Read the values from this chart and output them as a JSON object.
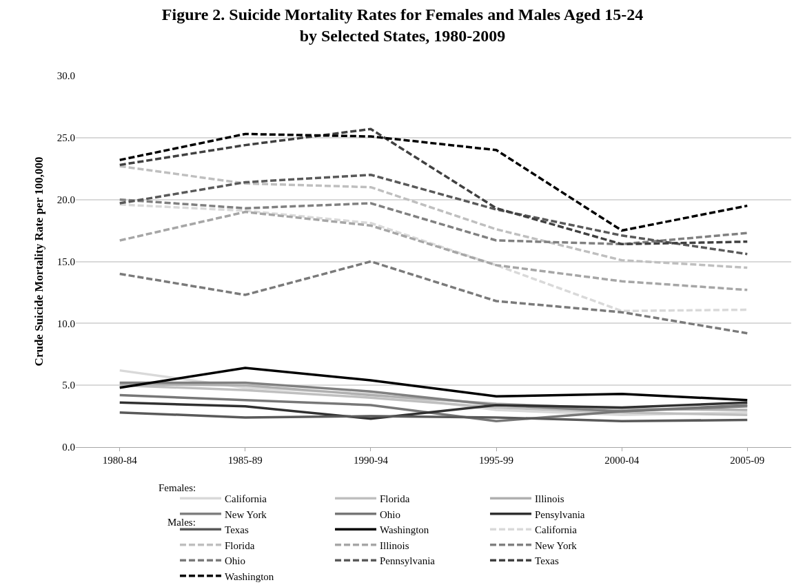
{
  "chart_data": {
    "type": "line",
    "title": "Figure 2. Suicide Mortality Rates for Females and Males Aged 15-24\nby Selected States, 1980-2009",
    "ylabel": "Crude Suicide Mortality Rate per 100,000",
    "categories": [
      "1980-84",
      "1985-89",
      "1990-94",
      "1995-99",
      "2000-04",
      "2005-09"
    ],
    "ylim": [
      0,
      30
    ],
    "yticks": [
      {
        "value": 0,
        "label": "0.0"
      },
      {
        "value": 5,
        "label": "5.0"
      },
      {
        "value": 10,
        "label": "10.0"
      },
      {
        "value": 15,
        "label": "15.0"
      },
      {
        "value": 20,
        "label": "20.0"
      },
      {
        "value": 25,
        "label": "25.0"
      },
      {
        "value": 30,
        "label": "30.0"
      }
    ],
    "grid": "y",
    "legend": "bottom",
    "marker": "none",
    "annotations": [
      "Females:",
      "Males:"
    ],
    "series": [
      {
        "name": "California",
        "color": "#d9d9d9",
        "line_style": "solid",
        "values": [
          6.2,
          4.8,
          4.3,
          3.0,
          2.6,
          2.8
        ]
      },
      {
        "name": "Florida",
        "color": "#bfbfbf",
        "line_style": "solid",
        "values": [
          5.0,
          4.6,
          4.0,
          3.2,
          2.8,
          2.6
        ]
      },
      {
        "name": "Illinois",
        "color": "#b0b0b0",
        "line_style": "solid",
        "values": [
          5.1,
          5.0,
          4.2,
          3.5,
          3.1,
          3.0
        ]
      },
      {
        "name": "New York",
        "color": "#808080",
        "line_style": "solid",
        "values": [
          5.2,
          5.2,
          4.5,
          3.4,
          2.9,
          3.3
        ]
      },
      {
        "name": "Ohio",
        "color": "#777777",
        "line_style": "solid",
        "values": [
          4.2,
          3.8,
          3.4,
          2.1,
          2.9,
          3.4
        ]
      },
      {
        "name": "Pensylvania",
        "color": "#303030",
        "line_style": "solid",
        "values": [
          3.6,
          3.3,
          2.3,
          3.4,
          3.2,
          3.6
        ]
      },
      {
        "name": "Texas",
        "color": "#595959",
        "line_style": "solid",
        "values": [
          2.8,
          2.4,
          2.5,
          2.4,
          2.1,
          2.2
        ]
      },
      {
        "name": "Washington",
        "color": "#000000",
        "line_style": "solid",
        "values": [
          4.8,
          6.4,
          5.4,
          4.1,
          4.3,
          3.8
        ]
      },
      {
        "name": "California",
        "color": "#d9d9d9",
        "line_style": "dashed",
        "values": [
          19.6,
          19.1,
          18.1,
          14.7,
          11.0,
          11.1
        ]
      },
      {
        "name": "Florida",
        "color": "#bfbfbf",
        "line_style": "dashed",
        "values": [
          22.7,
          21.3,
          21.0,
          17.6,
          15.1,
          14.5
        ]
      },
      {
        "name": "Illinois",
        "color": "#a6a6a6",
        "line_style": "dashed",
        "values": [
          16.7,
          19.0,
          17.9,
          14.7,
          13.4,
          12.7
        ]
      },
      {
        "name": "New York",
        "color": "#808080",
        "line_style": "dashed",
        "values": [
          20.0,
          19.3,
          19.7,
          16.7,
          16.4,
          17.3
        ]
      },
      {
        "name": "Ohio",
        "color": "#7a7a7a",
        "line_style": "dashed",
        "values": [
          14.0,
          12.3,
          15.0,
          11.8,
          10.9,
          9.2
        ]
      },
      {
        "name": "Pennsylvania",
        "color": "#595959",
        "line_style": "dashed",
        "values": [
          19.7,
          21.4,
          22.0,
          19.2,
          17.1,
          15.6
        ]
      },
      {
        "name": "Texas",
        "color": "#404040",
        "line_style": "dashed",
        "values": [
          22.8,
          24.4,
          25.7,
          19.3,
          16.4,
          16.6
        ]
      },
      {
        "name": "Washington",
        "color": "#000000",
        "line_style": "dashed",
        "values": [
          23.2,
          25.3,
          25.1,
          24.0,
          17.5,
          19.5
        ]
      }
    ]
  }
}
